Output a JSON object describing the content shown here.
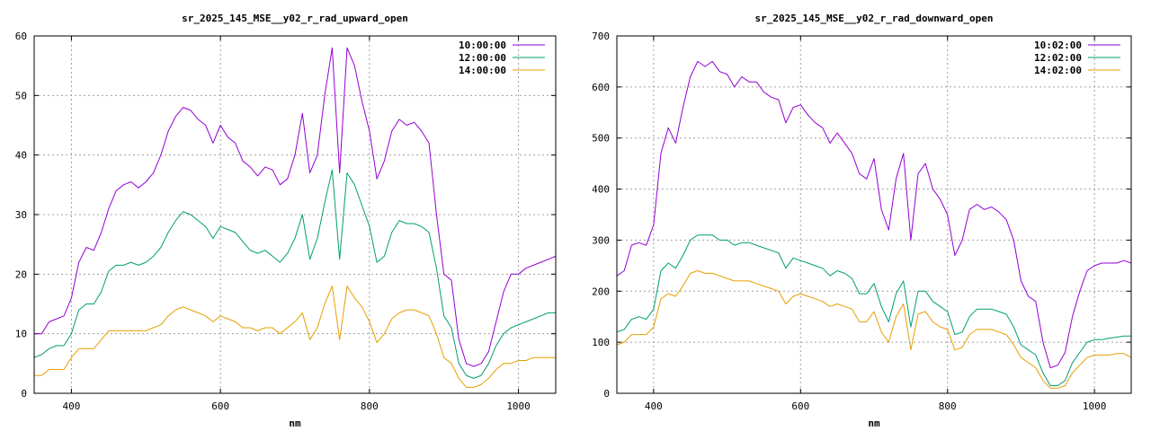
{
  "chart_data": [
    {
      "type": "line",
      "title": "sr_2025_145_MSE__y02_r_rad_upward_open",
      "xlabel": "nm",
      "ylabel": "",
      "xlim": [
        350,
        1050
      ],
      "ylim": [
        0,
        60
      ],
      "xticks": [
        400,
        600,
        800,
        1000
      ],
      "yticks": [
        0,
        10,
        20,
        30,
        40,
        50,
        60
      ],
      "grid": true,
      "legend": "top-right",
      "series": [
        {
          "name": "10:00:00",
          "color": "#9400d3",
          "x": [
            350,
            360,
            370,
            380,
            390,
            400,
            410,
            420,
            430,
            440,
            450,
            460,
            470,
            480,
            490,
            500,
            510,
            520,
            530,
            540,
            550,
            560,
            570,
            580,
            590,
            600,
            610,
            620,
            630,
            640,
            650,
            660,
            670,
            680,
            690,
            700,
            710,
            720,
            730,
            740,
            750,
            760,
            770,
            780,
            790,
            800,
            810,
            820,
            830,
            840,
            850,
            860,
            870,
            880,
            890,
            900,
            910,
            920,
            930,
            940,
            950,
            960,
            970,
            980,
            990,
            1000,
            1010,
            1020,
            1030,
            1040,
            1050
          ],
          "y": [
            10,
            10,
            12,
            12.5,
            13,
            16,
            22,
            24.5,
            24,
            27,
            31,
            34,
            35,
            35.5,
            34.5,
            35.5,
            37,
            40,
            44,
            46.5,
            48,
            47.5,
            46,
            45,
            42,
            45,
            43,
            42,
            39,
            38,
            36.5,
            38,
            37.5,
            35,
            36,
            40,
            47,
            37,
            40,
            50,
            58,
            37,
            58,
            55,
            49,
            44,
            36,
            39,
            44,
            46,
            45,
            45.5,
            44,
            42,
            30,
            20,
            19,
            9,
            5,
            4.5,
            5,
            7,
            12,
            17,
            20,
            20,
            21,
            21.5,
            22,
            22.5,
            23
          ]
        },
        {
          "name": "12:00:00",
          "color": "#009e73",
          "x": [
            350,
            360,
            370,
            380,
            390,
            400,
            410,
            420,
            430,
            440,
            450,
            460,
            470,
            480,
            490,
            500,
            510,
            520,
            530,
            540,
            550,
            560,
            570,
            580,
            590,
            600,
            610,
            620,
            630,
            640,
            650,
            660,
            670,
            680,
            690,
            700,
            710,
            720,
            730,
            740,
            750,
            760,
            770,
            780,
            790,
            800,
            810,
            820,
            830,
            840,
            850,
            860,
            870,
            880,
            890,
            900,
            910,
            920,
            930,
            940,
            950,
            960,
            970,
            980,
            990,
            1000,
            1010,
            1020,
            1030,
            1040,
            1050
          ],
          "y": [
            6,
            6.5,
            7.5,
            8,
            8,
            10,
            14,
            15,
            15,
            17,
            20.5,
            21.5,
            21.5,
            22,
            21.5,
            22,
            23,
            24.5,
            27,
            29,
            30.5,
            30,
            29,
            28,
            26,
            28,
            27.5,
            27,
            25.5,
            24,
            23.5,
            24,
            23,
            22,
            23.5,
            26,
            30,
            22.5,
            26,
            32,
            37.5,
            22.5,
            37,
            35,
            31.5,
            28,
            22,
            23,
            27,
            29,
            28.5,
            28.5,
            28,
            27,
            21,
            13,
            11,
            5,
            3,
            2.5,
            3,
            5,
            8,
            10,
            11,
            11.5,
            12,
            12.5,
            13,
            13.5,
            13.5
          ]
        },
        {
          "name": "14:00:00",
          "color": "#e69f00",
          "x": [
            350,
            360,
            370,
            380,
            390,
            400,
            410,
            420,
            430,
            440,
            450,
            460,
            470,
            480,
            490,
            500,
            510,
            520,
            530,
            540,
            550,
            560,
            570,
            580,
            590,
            600,
            610,
            620,
            630,
            640,
            650,
            660,
            670,
            680,
            690,
            700,
            710,
            720,
            730,
            740,
            750,
            760,
            770,
            780,
            790,
            800,
            810,
            820,
            830,
            840,
            850,
            860,
            870,
            880,
            890,
            900,
            910,
            920,
            930,
            940,
            950,
            960,
            970,
            980,
            990,
            1000,
            1010,
            1020,
            1030,
            1040,
            1050
          ],
          "y": [
            3,
            3,
            4,
            4,
            4,
            6,
            7.5,
            7.5,
            7.5,
            9,
            10.5,
            10.5,
            10.5,
            10.5,
            10.5,
            10.5,
            11,
            11.5,
            13,
            14,
            14.5,
            14,
            13.5,
            13,
            12,
            13,
            12.5,
            12,
            11,
            11,
            10.5,
            11,
            11,
            10,
            11,
            12,
            13.5,
            9,
            11,
            15,
            18,
            9,
            18,
            16,
            14.5,
            12,
            8.5,
            10,
            12.5,
            13.5,
            14,
            14,
            13.5,
            13,
            10,
            6,
            5,
            2.5,
            1,
            1,
            1.5,
            2.5,
            4,
            5,
            5,
            5.5,
            5.5,
            6,
            6,
            6,
            6
          ]
        }
      ]
    },
    {
      "type": "line",
      "title": "sr_2025_145_MSE__y02_r_rad_downward_open",
      "xlabel": "nm",
      "ylabel": "",
      "xlim": [
        350,
        1050
      ],
      "ylim": [
        0,
        700
      ],
      "xticks": [
        400,
        600,
        800,
        1000
      ],
      "yticks": [
        0,
        100,
        200,
        300,
        400,
        500,
        600,
        700
      ],
      "grid": true,
      "legend": "top-right",
      "series": [
        {
          "name": "10:02:00",
          "color": "#9400d3",
          "x": [
            350,
            360,
            370,
            380,
            390,
            400,
            410,
            420,
            430,
            440,
            450,
            460,
            470,
            480,
            490,
            500,
            510,
            520,
            530,
            540,
            550,
            560,
            570,
            580,
            590,
            600,
            610,
            620,
            630,
            640,
            650,
            660,
            670,
            680,
            690,
            700,
            710,
            720,
            730,
            740,
            750,
            760,
            770,
            780,
            790,
            800,
            810,
            820,
            830,
            840,
            850,
            860,
            870,
            880,
            890,
            900,
            910,
            920,
            930,
            940,
            950,
            960,
            970,
            980,
            990,
            1000,
            1010,
            1020,
            1030,
            1040,
            1050
          ],
          "y": [
            230,
            240,
            290,
            295,
            290,
            330,
            470,
            520,
            490,
            560,
            620,
            650,
            640,
            650,
            630,
            625,
            600,
            620,
            610,
            610,
            590,
            580,
            575,
            530,
            560,
            565,
            545,
            530,
            520,
            490,
            510,
            490,
            470,
            430,
            420,
            460,
            360,
            320,
            420,
            470,
            300,
            430,
            450,
            400,
            380,
            350,
            270,
            300,
            360,
            370,
            360,
            365,
            355,
            340,
            300,
            220,
            190,
            180,
            100,
            50,
            55,
            80,
            150,
            200,
            240,
            250,
            255,
            255,
            255,
            260,
            255
          ]
        },
        {
          "name": "12:02:00",
          "color": "#009e73",
          "x": [
            350,
            360,
            370,
            380,
            390,
            400,
            410,
            420,
            430,
            440,
            450,
            460,
            470,
            480,
            490,
            500,
            510,
            520,
            530,
            540,
            550,
            560,
            570,
            580,
            590,
            600,
            610,
            620,
            630,
            640,
            650,
            660,
            670,
            680,
            690,
            700,
            710,
            720,
            730,
            740,
            750,
            760,
            770,
            780,
            790,
            800,
            810,
            820,
            830,
            840,
            850,
            860,
            870,
            880,
            890,
            900,
            910,
            920,
            930,
            940,
            950,
            960,
            970,
            980,
            990,
            1000,
            1010,
            1020,
            1030,
            1040,
            1050
          ],
          "y": [
            120,
            125,
            145,
            150,
            145,
            165,
            240,
            255,
            245,
            270,
            300,
            310,
            310,
            310,
            300,
            300,
            290,
            295,
            295,
            290,
            285,
            280,
            275,
            245,
            265,
            260,
            255,
            250,
            245,
            230,
            240,
            235,
            225,
            195,
            195,
            215,
            170,
            140,
            195,
            220,
            130,
            200,
            200,
            180,
            170,
            160,
            115,
            120,
            150,
            165,
            165,
            165,
            160,
            155,
            130,
            95,
            85,
            75,
            40,
            15,
            15,
            25,
            60,
            80,
            100,
            105,
            105,
            108,
            110,
            112,
            112
          ]
        },
        {
          "name": "14:02:00",
          "color": "#e69f00",
          "x": [
            350,
            360,
            370,
            380,
            390,
            400,
            410,
            420,
            430,
            440,
            450,
            460,
            470,
            480,
            490,
            500,
            510,
            520,
            530,
            540,
            550,
            560,
            570,
            580,
            590,
            600,
            610,
            620,
            630,
            640,
            650,
            660,
            670,
            680,
            690,
            700,
            710,
            720,
            730,
            740,
            750,
            760,
            770,
            780,
            790,
            800,
            810,
            820,
            830,
            840,
            850,
            860,
            870,
            880,
            890,
            900,
            910,
            920,
            930,
            940,
            950,
            960,
            970,
            980,
            990,
            1000,
            1010,
            1020,
            1030,
            1040,
            1050
          ],
          "y": [
            95,
            100,
            115,
            115,
            115,
            130,
            185,
            195,
            190,
            210,
            235,
            240,
            235,
            235,
            230,
            225,
            220,
            220,
            220,
            215,
            210,
            205,
            200,
            175,
            190,
            195,
            190,
            185,
            180,
            170,
            175,
            170,
            165,
            140,
            140,
            160,
            120,
            100,
            150,
            175,
            85,
            155,
            160,
            140,
            130,
            125,
            85,
            90,
            115,
            125,
            125,
            125,
            120,
            115,
            95,
            70,
            60,
            50,
            25,
            10,
            10,
            15,
            40,
            55,
            70,
            75,
            75,
            75,
            78,
            78,
            70
          ]
        }
      ]
    }
  ]
}
